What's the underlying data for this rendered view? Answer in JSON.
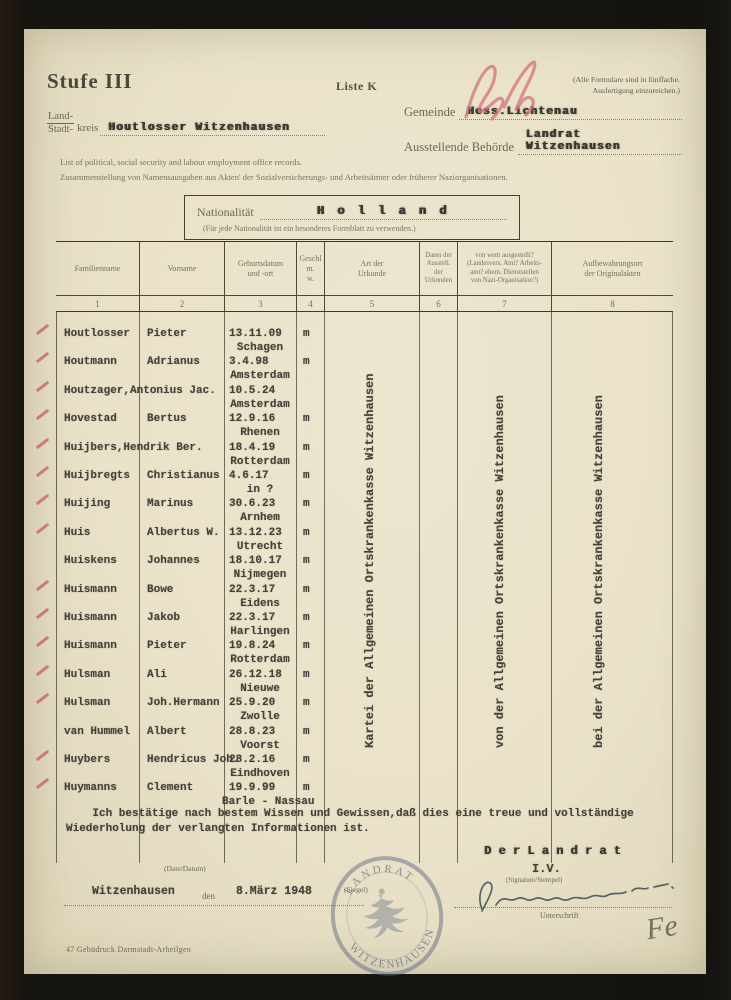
{
  "header": {
    "stufe": "Stufe III",
    "liste": "Liste K",
    "notice_line1": "(Alle Formulare sind in fünffache.",
    "notice_line2": "Ausfertigung einzureichen.)"
  },
  "meta": {
    "land_label": "Land-",
    "stadt_label": "Stadt-",
    "kreis_label": "kreis",
    "kreis_value": "Houtlosser Witzenhausen",
    "gemeinde_label": "Gemeinde",
    "gemeinde_value": "Hess.Lichtenau",
    "behoerde_label": "Ausstellende Behörde",
    "behoerde_value": "Landrat Witzenhausen"
  },
  "subtitles": {
    "english": "List of political, social security and labour employment office records.",
    "german": "Zusammenstellung von Namensausgaben aus Akten' der Sozialversicherungs- und Arbeitsämter oder früherer Naziorganisationen."
  },
  "nationality": {
    "label": "Nationalität",
    "value": "H o l l a n d",
    "note": "(Für jede Nationalität ist ein besonderes Formblatt zu verwenden.)"
  },
  "table": {
    "headers": [
      {
        "label": "Familienname",
        "number": "1"
      },
      {
        "label": "Vorname",
        "number": "2"
      },
      {
        "label": "Geburtsdatum\nund -ort",
        "number": "3"
      },
      {
        "label": "Geschl\nm.\nw.",
        "number": "4"
      },
      {
        "label": "Art der\nUrkunde",
        "number": "5"
      },
      {
        "label": "Daten der\nAusstell. der\nUrkunden",
        "number": "6"
      },
      {
        "label": "von wem ausgestellt?\n(Landesvers. Amt? Arbeits-\namt? ehem. Dienststellen\nvon Nazi-Organisation?)",
        "number": "7"
      },
      {
        "label": "Aufbewahrungsort\nder Originalakten",
        "number": "8"
      }
    ],
    "vertical_texts": {
      "art_der_urkunde": "Kartei der Allgemeinen Ortskrankenkasse Witzenhausen",
      "von_wem": "von der Allgemeinen Ortskrankenkasse Witzenhausen",
      "aufbewahrungsort": "bei der Allgemeinen Ortskrankenkasse Witzenhausen"
    },
    "rows": [
      {
        "checked": true,
        "familienname": "Houtlosser",
        "vorname": "Pieter",
        "geburtsdatum": "13.11.09",
        "geburtsort": "Schagen",
        "geschlecht": "m"
      },
      {
        "checked": true,
        "familienname": "Houtmann",
        "vorname": "Adrianus",
        "geburtsdatum": "3.4.98",
        "geburtsort": "Amsterdam",
        "geschlecht": "m"
      },
      {
        "checked": true,
        "familienname": "Houtzager,Antonius Jac.",
        "vorname": "",
        "geburtsdatum": "10.5.24",
        "geburtsort": "Amsterdam",
        "geschlecht": ""
      },
      {
        "checked": true,
        "familienname": "Hovestad",
        "vorname": "Bertus",
        "geburtsdatum": "12.9.16",
        "geburtsort": "Rhenen",
        "geschlecht": "m"
      },
      {
        "checked": true,
        "familienname": "Huijbers,Hendrik Ber.",
        "vorname": "",
        "geburtsdatum": "18.4.19",
        "geburtsort": "Rotterdam",
        "geschlecht": "m"
      },
      {
        "checked": true,
        "familienname": "Huijbregts",
        "vorname": "Christianus",
        "geburtsdatum": "4.6.17",
        "geburtsort": "in ?",
        "geschlecht": "m"
      },
      {
        "checked": true,
        "familienname": "Huijing",
        "vorname": "Marinus",
        "geburtsdatum": "30.6.23",
        "geburtsort": "Arnhem",
        "geschlecht": "m"
      },
      {
        "checked": true,
        "familienname": "Huis",
        "vorname": "Albertus W.",
        "geburtsdatum": "13.12.23",
        "geburtsort": "Utrecht",
        "geschlecht": "m"
      },
      {
        "checked": false,
        "familienname": "Huiskens",
        "vorname": "Johannes",
        "geburtsdatum": "18.10.17",
        "geburtsort": "Nijmegen",
        "geschlecht": "m"
      },
      {
        "checked": true,
        "familienname": "Huismann",
        "vorname": "Bowe",
        "geburtsdatum": "22.3.17",
        "geburtsort": "Eidens",
        "geschlecht": "m"
      },
      {
        "checked": true,
        "familienname": "Huismann",
        "vorname": "Jakob",
        "geburtsdatum": "22.3.17",
        "geburtsort": "Harlingen",
        "geschlecht": "m"
      },
      {
        "checked": true,
        "familienname": "Huismann",
        "vorname": "Pieter",
        "geburtsdatum": "19.8.24",
        "geburtsort": "Rotterdam",
        "geschlecht": "m"
      },
      {
        "checked": true,
        "familienname": "Hulsman",
        "vorname": "Ali",
        "geburtsdatum": "26.12.18",
        "geburtsort": "Nieuwe",
        "geschlecht": "m"
      },
      {
        "checked": true,
        "familienname": "Hulsman",
        "vorname": "Joh.Hermann",
        "geburtsdatum": "25.9.20",
        "geburtsort": "Zwolle",
        "geschlecht": "m"
      },
      {
        "checked": false,
        "familienname": "van Hummel",
        "vorname": "Albert",
        "geburtsdatum": "28.8.23",
        "geburtsort": "Voorst",
        "geschlecht": "m"
      },
      {
        "checked": true,
        "familienname": "Huybers",
        "vorname": "Hendricus Joh.",
        "geburtsdatum": "28.2.16",
        "geburtsort": "Eindhoven",
        "geschlecht": "m"
      },
      {
        "checked": true,
        "familienname": "Huymanns",
        "vorname": "Clement",
        "geburtsdatum": "19.9.99",
        "geburtsort": "Barle - Nassau",
        "geschlecht": "m"
      }
    ]
  },
  "certification": {
    "text": "    Ich bestätige nach bestem Wissen und Gewissen,daß dies eine treue und vollständige\nWiederholung der verlangten Informationen ist.",
    "signoff": "D e r  L a n d r a t"
  },
  "footer": {
    "date_label": "(Date/Datum)",
    "place_value": "Witzenhausen",
    "den_label": "den",
    "date_value": "8.März 1948",
    "siegel_label": "(Siegel)",
    "stamp": {
      "top": "LANDRAT",
      "bottom": "WITZENHAUSEN"
    },
    "iv": "I.V.",
    "signature_label": "(Signature/Stempel)",
    "unterschrift_label": "Unterschrift",
    "print_note": "47  Gebüdruck  Darmstadt-Arheilgen",
    "pencil_initials": "Fe"
  },
  "colors": {
    "paper": "#e9e2c9",
    "frame": "#1b1a17",
    "typed_ink": "#45403a",
    "printed_ink": "#77705f",
    "red_mark": "#c4646a",
    "stamp_blue": "#5e6886",
    "signature_ink": "#3d4e57"
  }
}
